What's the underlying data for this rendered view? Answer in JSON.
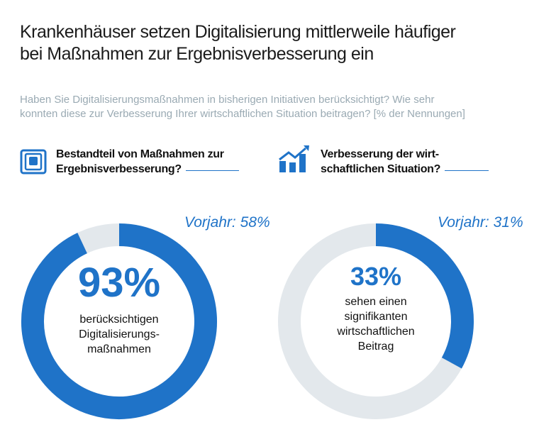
{
  "title": [
    "Krankenhäuser setzen Digitalisierung mittlerweile häufiger",
    "bei Maßnahmen zur Ergebnisverbesserung ein"
  ],
  "subtitle": [
    "Haben Sie Digitalisierungsmaßnahmen in bisherigen Initiativen berücksichtigt? Wie sehr",
    "konnten diese zur Verbesserung Ihrer wirtschaftlichen Situation beitragen? [% der Nennungen]"
  ],
  "colors": {
    "accent": "#1f73c8",
    "rest": "#e3e8ec"
  },
  "chart_data": [
    {
      "type": "pie",
      "variant": "donut",
      "heading": [
        "Bestandteil von Maßnahmen zur",
        "Ergebnisverbesserung?"
      ],
      "icon": "document-stack-icon",
      "value": 93,
      "value_label": "93%",
      "caption": [
        "berücksichtigen",
        "Digitalisierungs-",
        "maßnahmen"
      ],
      "previous_year": "Vorjahr: 58%"
    },
    {
      "type": "pie",
      "variant": "donut",
      "heading": [
        "Verbesserung der wirt-",
        "schaftlichen Situation?"
      ],
      "icon": "bar-chart-growth-icon",
      "value": 33,
      "value_label": "33%",
      "caption": [
        "sehen einen",
        "signifikanten",
        "wirtschaftlichen",
        "Beitrag"
      ],
      "previous_year": "Vorjahr: 31%"
    }
  ]
}
